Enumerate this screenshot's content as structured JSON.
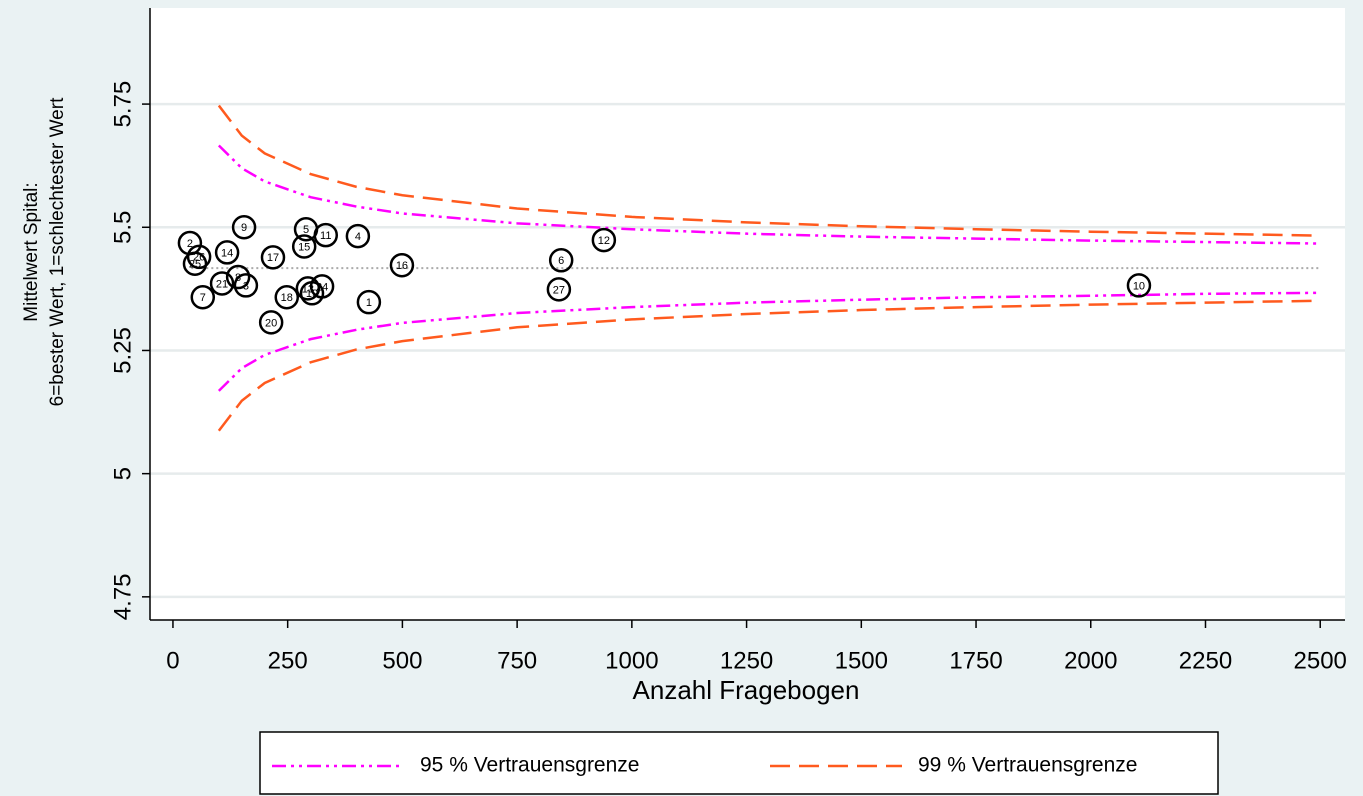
{
  "chart_data": {
    "type": "funnel",
    "x_label": "Anzahl Fragebogen",
    "y_label": [
      "Mittelwert Spital:",
      "6=bester Wert, 1=schlechtester Wert"
    ],
    "xlim": [
      -50,
      2554
    ],
    "ylim": [
      4.703,
      5.945
    ],
    "xticks": [
      0,
      250,
      500,
      750,
      1000,
      1250,
      1500,
      1750,
      2000,
      2250,
      2500
    ],
    "yticks": [
      4.75,
      5,
      5.25,
      5.5,
      5.75
    ],
    "grid": true,
    "legend_position": "bottom",
    "reference_line": {
      "y": 5.417,
      "x": [
        40,
        2500
      ],
      "color": "#aaaaaa"
    },
    "series": [
      {
        "name": "95 % Vertrauensgrenze",
        "color": "#ff00ff",
        "dash": "dash-dot-dot",
        "x": [
          100,
          150,
          200,
          300,
          400,
          500,
          750,
          1000,
          1250,
          1500,
          1750,
          2000,
          2250,
          2500
        ],
        "upper": [
          5.666,
          5.62,
          5.593,
          5.561,
          5.542,
          5.528,
          5.508,
          5.496,
          5.487,
          5.481,
          5.477,
          5.473,
          5.47,
          5.467
        ],
        "lower": [
          5.168,
          5.214,
          5.241,
          5.273,
          5.292,
          5.306,
          5.326,
          5.338,
          5.347,
          5.353,
          5.358,
          5.361,
          5.365,
          5.367
        ]
      },
      {
        "name": "99 % Vertrauensgrenze",
        "color": "#ff5a1e",
        "dash": "dash",
        "x": [
          100,
          150,
          200,
          300,
          400,
          500,
          750,
          1000,
          1250,
          1500,
          1750,
          2000,
          2250,
          2500
        ],
        "upper": [
          5.747,
          5.686,
          5.65,
          5.608,
          5.582,
          5.565,
          5.538,
          5.521,
          5.51,
          5.502,
          5.496,
          5.491,
          5.487,
          5.483
        ],
        "lower": [
          5.087,
          5.148,
          5.184,
          5.226,
          5.252,
          5.269,
          5.297,
          5.313,
          5.324,
          5.332,
          5.338,
          5.343,
          5.347,
          5.351
        ]
      }
    ],
    "points": {
      "labels": [
        "2",
        "25",
        "26",
        "14",
        "9",
        "21",
        "7",
        "8",
        "3",
        "17",
        "20",
        "18",
        "5",
        "15",
        "13",
        "19",
        "24",
        "11",
        "4",
        "1",
        "16",
        "6",
        "27",
        "12",
        "10"
      ],
      "x": [
        37,
        48,
        57,
        118,
        155,
        107,
        65,
        142,
        159,
        218,
        214,
        248,
        290,
        286,
        294,
        303,
        325,
        333,
        403,
        427,
        499,
        846,
        841,
        939,
        2105
      ],
      "y": [
        5.468,
        5.426,
        5.44,
        5.449,
        5.5,
        5.386,
        5.358,
        5.399,
        5.382,
        5.439,
        5.307,
        5.358,
        5.496,
        5.461,
        5.376,
        5.366,
        5.38,
        5.484,
        5.482,
        5.348,
        5.423,
        5.433,
        5.374,
        5.474,
        5.382
      ]
    }
  }
}
